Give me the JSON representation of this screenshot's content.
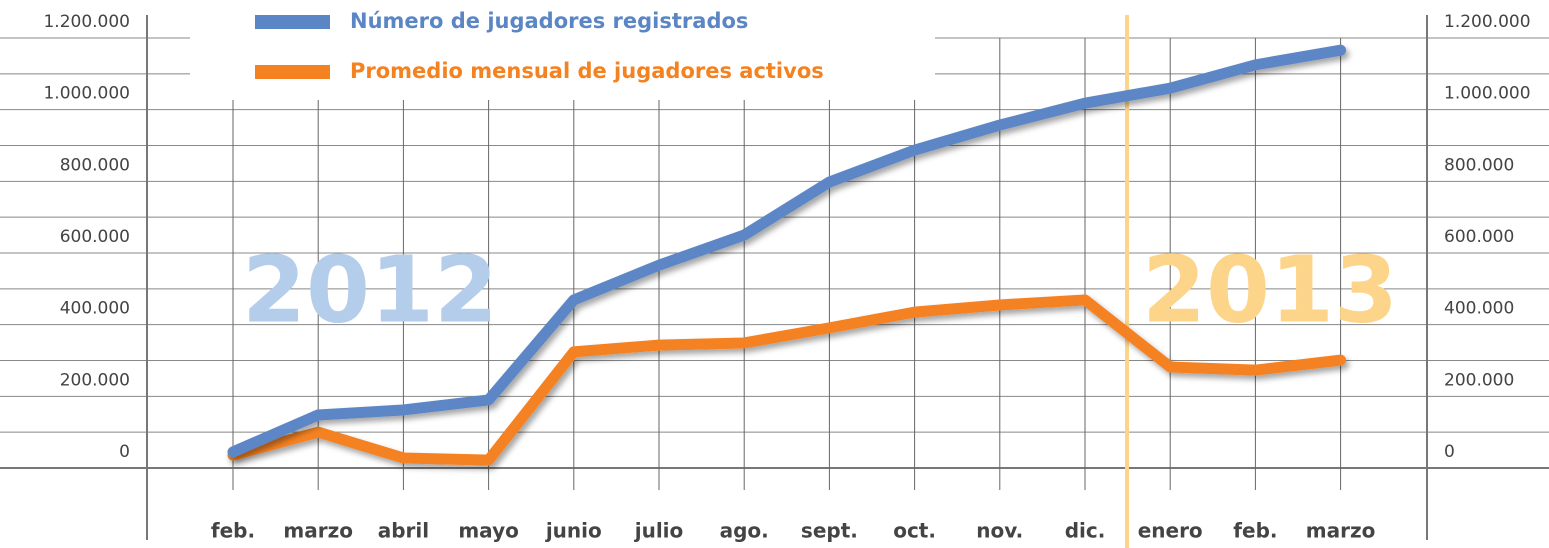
{
  "chart_data": {
    "type": "line",
    "categories": [
      "feb.",
      "marzo",
      "abril",
      "mayo",
      "junio",
      "julio",
      "ago.",
      "sept.",
      "oct.",
      "nov.",
      "dic.",
      "enero",
      "feb.",
      "marzo"
    ],
    "series": [
      {
        "name": "Número de jugadores registrados",
        "color": "#5b86c5",
        "values": [
          45000,
          148000,
          162000,
          190000,
          469000,
          566000,
          650000,
          798000,
          887000,
          957000,
          1018000,
          1060000,
          1125000,
          1166000
        ]
      },
      {
        "name": "Promedio mensual de jugadores activos",
        "color": "#f58220",
        "values": [
          36000,
          100000,
          28000,
          22000,
          324000,
          343000,
          349000,
          391000,
          435000,
          455000,
          469000,
          282000,
          273000,
          301000
        ]
      }
    ],
    "ylim": [
      0,
      1200000
    ],
    "yticks": [
      {
        "value": 0,
        "label": "0"
      },
      {
        "value": 200000,
        "label": "200.000"
      },
      {
        "value": 400000,
        "label": "400.000"
      },
      {
        "value": 600000,
        "label": "600.000"
      },
      {
        "value": 800000,
        "label": "800.000"
      },
      {
        "value": 1000000,
        "label": "1.000.000"
      },
      {
        "value": 1200000,
        "label": "1.200.000"
      }
    ],
    "minor_yticks": [
      100000,
      300000,
      500000,
      700000,
      900000,
      1100000
    ],
    "annotations": [
      {
        "text": "2012",
        "color": "#b4cdea"
      },
      {
        "text": "2013",
        "color": "#fdd58a"
      }
    ],
    "grid": true
  }
}
